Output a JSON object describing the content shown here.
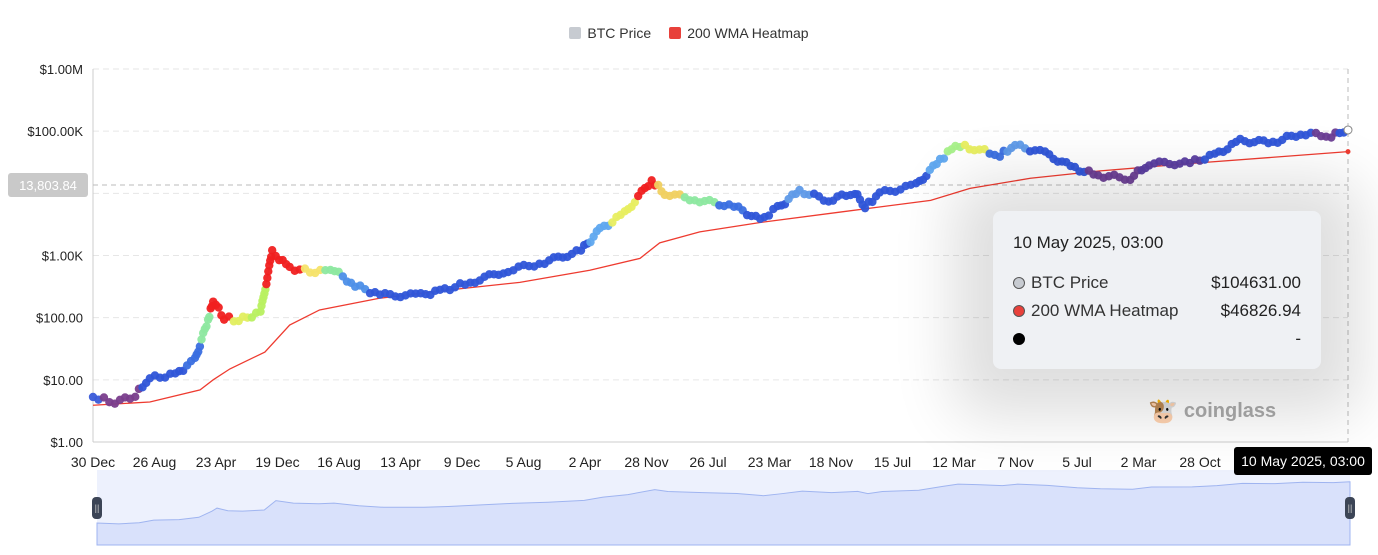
{
  "chart_data": {
    "type": "scatter",
    "title": "",
    "xlabel": "",
    "ylabel": "",
    "yscale": "log",
    "ylim": [
      1,
      1000000
    ],
    "grid": true,
    "legend_position": "top-center",
    "legend": [
      {
        "name": "BTC Price",
        "color": "#c7cbd1"
      },
      {
        "name": "200 WMA Heatmap",
        "color": "#e8413b"
      }
    ],
    "y_ticks": [
      {
        "value": 1,
        "label": "$1.00"
      },
      {
        "value": 10,
        "label": "$10.00"
      },
      {
        "value": 100,
        "label": "$100.00"
      },
      {
        "value": 1000,
        "label": "$1.00K"
      },
      {
        "value": 100000,
        "label": "$100.00K"
      },
      {
        "value": 1000000,
        "label": "$1.00M"
      }
    ],
    "x_unit": "months since 30 Dec 2010",
    "xlim": [
      0,
      172.3
    ],
    "x_ticks": [
      "30 Dec",
      "26 Aug",
      "23 Apr",
      "19 Dec",
      "16 Aug",
      "13 Apr",
      "9 Dec",
      "5 Aug",
      "2 Apr",
      "28 Nov",
      "26 Jul",
      "23 Mar",
      "18 Nov",
      "15 Jul",
      "12 Mar",
      "7 Nov",
      "5 Jul",
      "2 Mar",
      "28 Oct"
    ],
    "btc_price": [
      [
        0,
        5.3,
        "#3a5bd9"
      ],
      [
        3,
        4.4,
        "#7a3d8c"
      ],
      [
        5.8,
        5.7,
        "#7a3d8c"
      ],
      [
        7.8,
        10.7,
        "#2f55d8"
      ],
      [
        11.3,
        12,
        "#2f55d8"
      ],
      [
        14,
        21,
        "#3b6fe0"
      ],
      [
        15.8,
        91,
        "#8de8a0"
      ],
      [
        16.5,
        190,
        "#f02020"
      ],
      [
        18,
        100,
        "#f02020"
      ],
      [
        20,
        91,
        "#e2ee60"
      ],
      [
        23,
        120,
        "#b8f060"
      ],
      [
        24.6,
        1130,
        "#f02020"
      ],
      [
        27,
        630,
        "#f02020"
      ],
      [
        30.5,
        540,
        "#f5e36a"
      ],
      [
        32.6,
        630,
        "#8de8a0"
      ],
      [
        36,
        330,
        "#4d8fe8"
      ],
      [
        39.4,
        230,
        "#2f55d8"
      ],
      [
        45,
        230,
        "#2f55d8"
      ],
      [
        48.3,
        280,
        "#2f55d8"
      ],
      [
        51.8,
        370,
        "#2f55d8"
      ],
      [
        57,
        580,
        "#2f55d8"
      ],
      [
        62,
        780,
        "#2f55d8"
      ],
      [
        67,
        1200,
        "#2f55d8"
      ],
      [
        69.6,
        2600,
        "#5fa8ef"
      ],
      [
        73,
        4800,
        "#e8ee60"
      ],
      [
        76.7,
        16000,
        "#f02020"
      ],
      [
        78.5,
        10000,
        "#f0d060"
      ],
      [
        83.3,
        7700,
        "#8de8a0"
      ],
      [
        88,
        6200,
        "#3b6fe0"
      ],
      [
        91.6,
        3700,
        "#2f55d8"
      ],
      [
        94,
        5800,
        "#2f55d8"
      ],
      [
        97,
        11000,
        "#5f9ae8"
      ],
      [
        101,
        7700,
        "#2f55d8"
      ],
      [
        104.6,
        10500,
        "#2f55d8"
      ],
      [
        106,
        6000,
        "#2f55d8"
      ],
      [
        108,
        10000,
        "#2f55d8"
      ],
      [
        113,
        13500,
        "#2f55d8"
      ],
      [
        116.3,
        34000,
        "#5fa8ef"
      ],
      [
        118.4,
        59000,
        "#a8f08a"
      ],
      [
        121,
        53000,
        "#e8ee60"
      ],
      [
        124.5,
        41000,
        "#3b6fe0"
      ],
      [
        126.6,
        59000,
        "#5f9ae8"
      ],
      [
        130.7,
        44000,
        "#2f55d8"
      ],
      [
        134.8,
        25000,
        "#2f55d8"
      ],
      [
        138,
        19500,
        "#6a3d94"
      ],
      [
        142.4,
        17500,
        "#6a3d94"
      ],
      [
        145,
        30000,
        "#5a3da0"
      ],
      [
        150.6,
        31000,
        "#5a3da0"
      ],
      [
        154,
        41000,
        "#2f55d8"
      ],
      [
        157.5,
        70000,
        "#2f55d8"
      ],
      [
        162,
        66000,
        "#2f55d8"
      ],
      [
        165.8,
        92000,
        "#2f55d8"
      ],
      [
        170,
        85000,
        "#6a3d94"
      ],
      [
        172.3,
        104631,
        "#2f55d8"
      ]
    ],
    "wma_200": [
      [
        0,
        3.9
      ],
      [
        7.8,
        4.4
      ],
      [
        14.7,
        6.9
      ],
      [
        16.5,
        10
      ],
      [
        18.8,
        15
      ],
      [
        23.6,
        28
      ],
      [
        27,
        76
      ],
      [
        31.1,
        133
      ],
      [
        39.4,
        206
      ],
      [
        49,
        280
      ],
      [
        58.6,
        370
      ],
      [
        68.2,
        580
      ],
      [
        75.1,
        900
      ],
      [
        77.8,
        1600
      ],
      [
        83.3,
        2400
      ],
      [
        91.6,
        3400
      ],
      [
        102.6,
        5000
      ],
      [
        115,
        7700
      ],
      [
        120.4,
        12000
      ],
      [
        128.7,
        17500
      ],
      [
        138.3,
        23000
      ],
      [
        152,
        31000
      ],
      [
        172.3,
        46826.94
      ]
    ]
  },
  "legend": {
    "btc": "BTC Price",
    "wma": "200 WMA Heatmap"
  },
  "crosshair": {
    "y_value_label": "13,803.84",
    "x_value_label": "10 May 2025, 03:00"
  },
  "tooltip": {
    "title": "10 May 2025, 03:00",
    "rows": [
      {
        "label": "BTC Price",
        "value": "$104631.00",
        "color": "#c7cbd1"
      },
      {
        "label": "200 WMA Heatmap",
        "value": "$46826.94",
        "color": "#e8413b"
      },
      {
        "label": "",
        "value": "-",
        "color": "#000000"
      }
    ]
  },
  "watermark": "coinglass"
}
